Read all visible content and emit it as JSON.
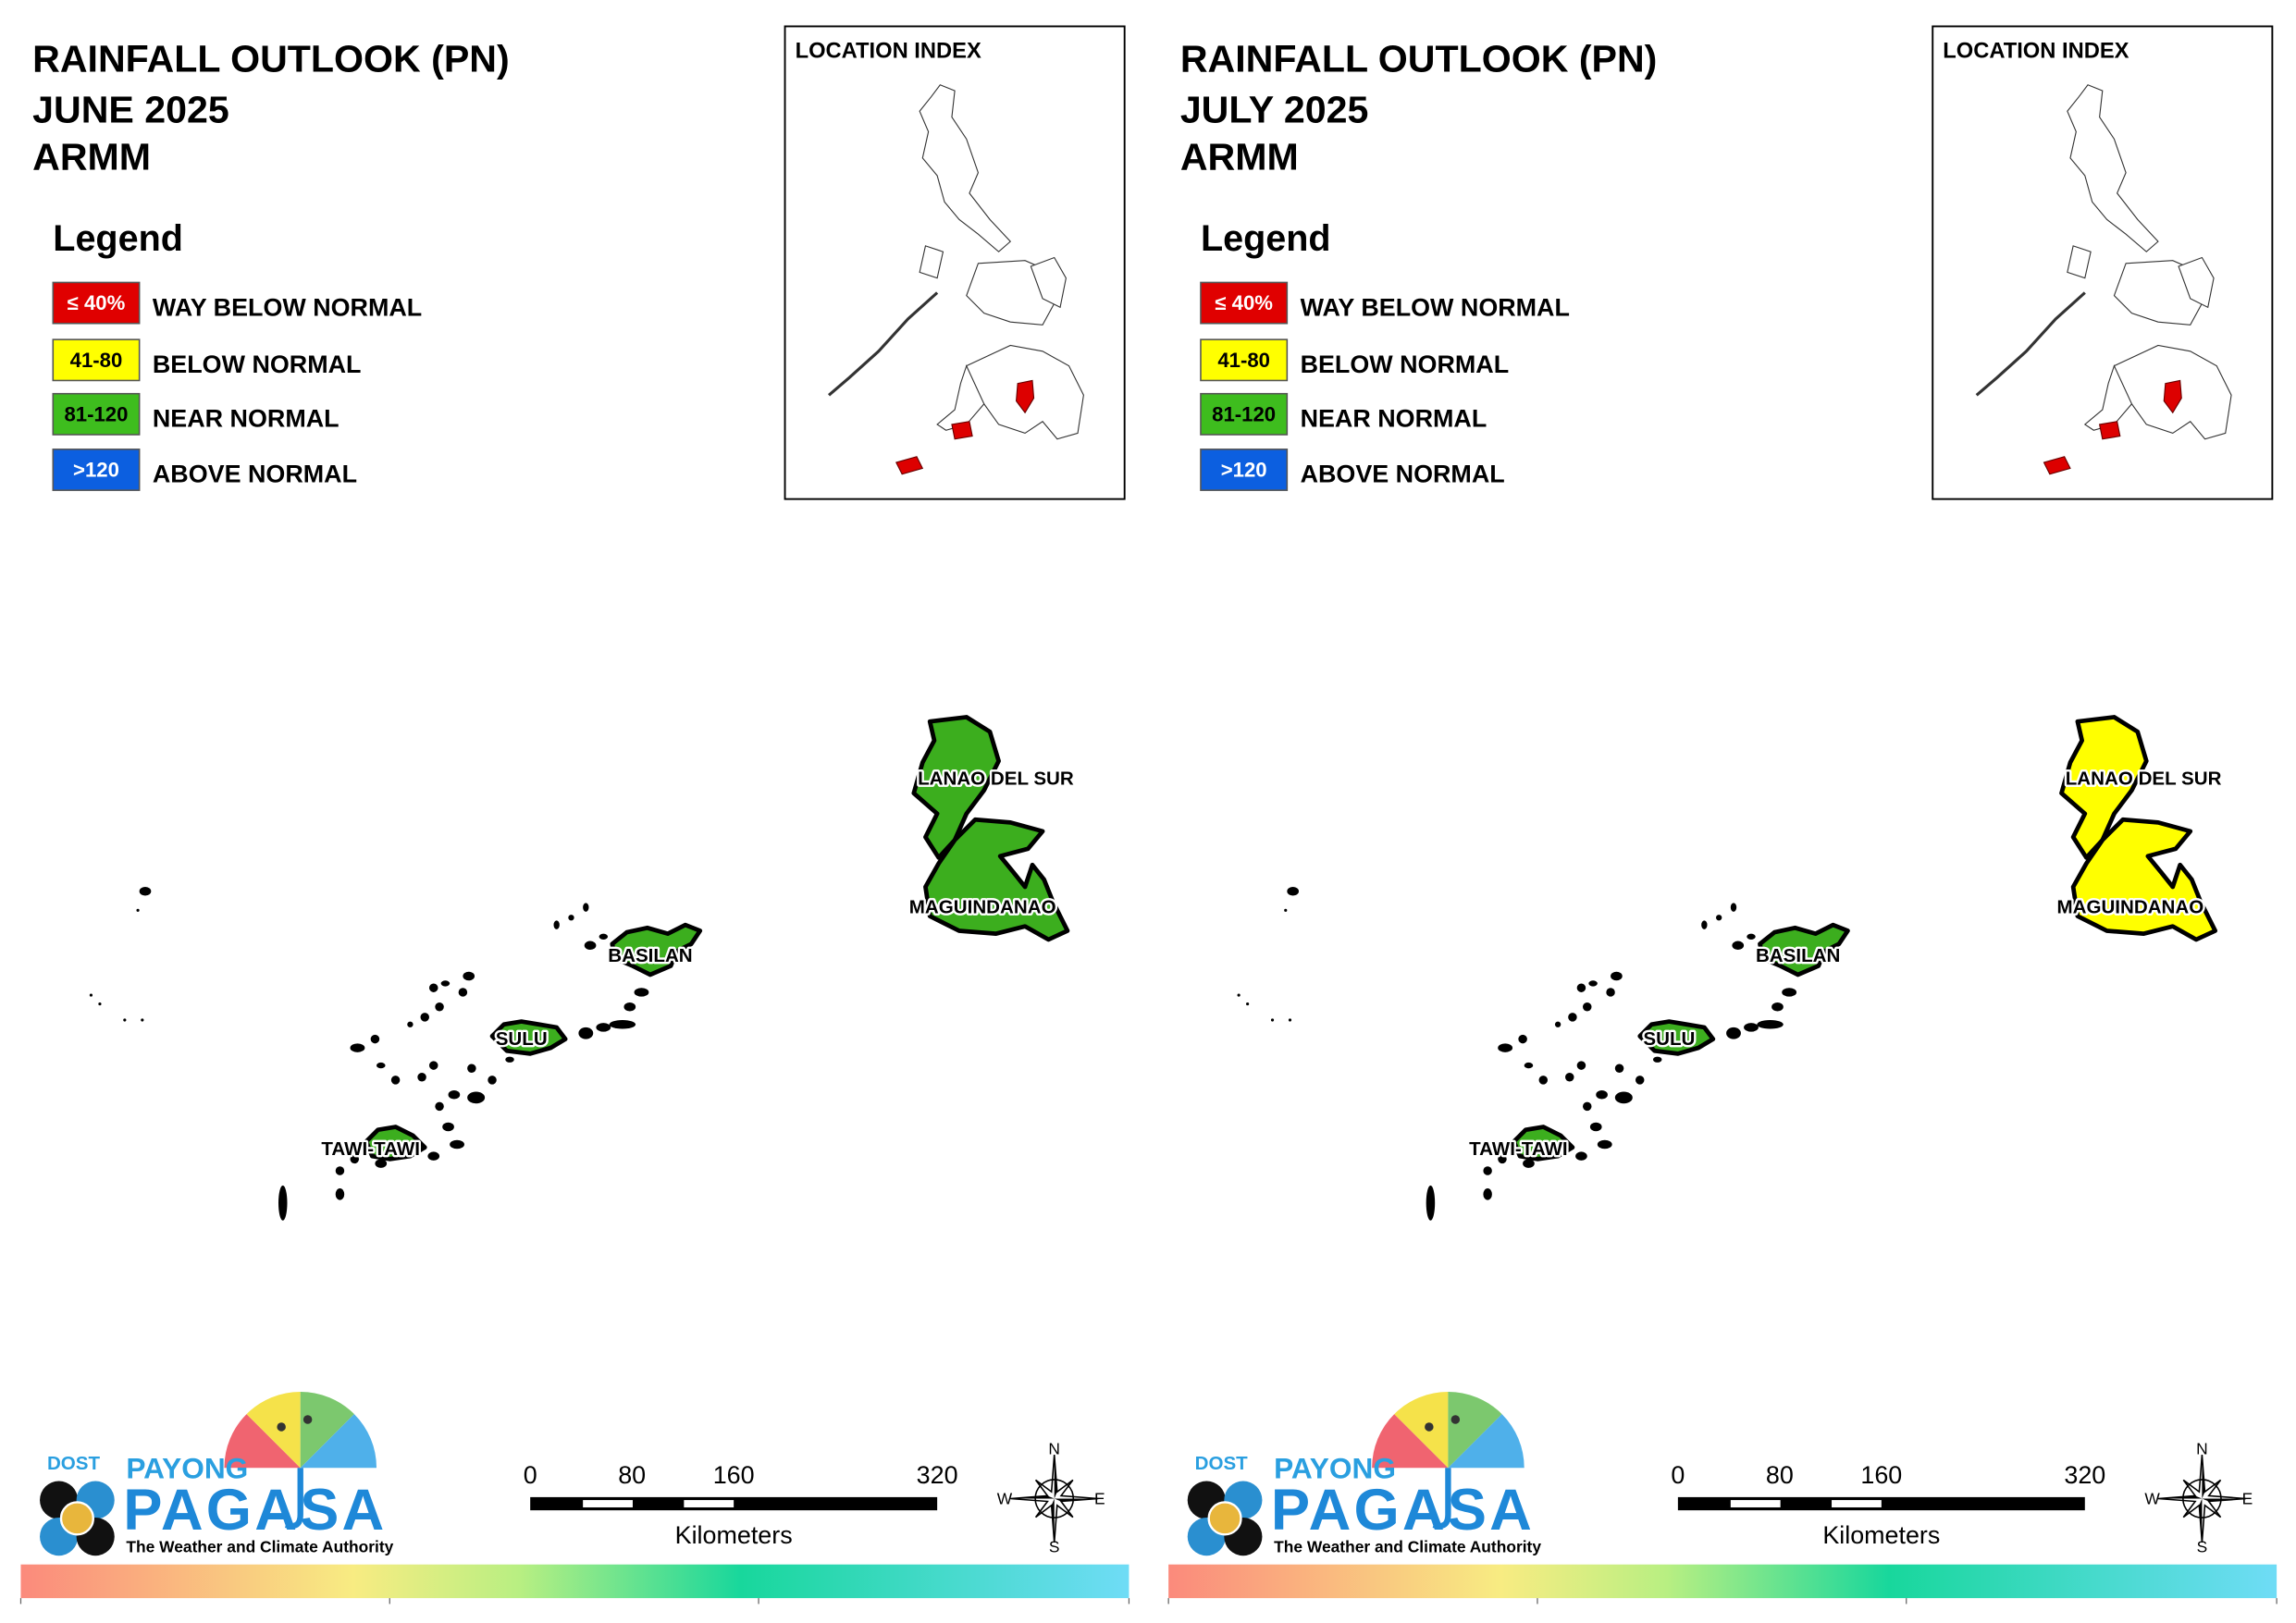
{
  "panels": [
    {
      "title": [
        "RAINFALL OUTLOOK (PN)",
        "JUNE 2025",
        "ARMM"
      ],
      "legend": {
        "title": "Legend",
        "items": [
          {
            "swatch": "≤ 40%",
            "label": "WAY BELOW NORMAL",
            "color": "#e00000"
          },
          {
            "swatch": "41-80",
            "label": "BELOW NORMAL",
            "color": "#ffff00"
          },
          {
            "swatch": "81-120",
            "label": "NEAR NORMAL",
            "color": "#3ebd1e"
          },
          {
            "swatch": ">120",
            "label": "ABOVE NORMAL",
            "color": "#0c5fe0"
          }
        ]
      },
      "location_index": {
        "title": "LOCATION INDEX"
      },
      "regions": [
        {
          "name": "LANAO DEL SUR",
          "color": "#3cae1e"
        },
        {
          "name": "MAGUINDANAO",
          "color": "#3cae1e"
        },
        {
          "name": "BASILAN",
          "color": "#3cae1e"
        },
        {
          "name": "SULU",
          "color": "#3cae1e"
        },
        {
          "name": "TAWI-TAWI",
          "color": "#3cae1e"
        }
      ],
      "logo": {
        "agency": "DOST",
        "brand_top": "PAYONG",
        "brand": "PAGASA",
        "tagline": "The Weather and Climate Authority"
      },
      "scale_bar": {
        "ticks": [
          "0",
          "80",
          "160",
          "320"
        ],
        "unit": "Kilometers"
      },
      "compass": {
        "n": "N",
        "e": "E",
        "s": "S",
        "w": "W"
      }
    },
    {
      "title": [
        "RAINFALL OUTLOOK (PN)",
        "JULY 2025",
        "ARMM"
      ],
      "legend": {
        "title": "Legend",
        "items": [
          {
            "swatch": "≤ 40%",
            "label": "WAY BELOW NORMAL",
            "color": "#e00000"
          },
          {
            "swatch": "41-80",
            "label": "BELOW NORMAL",
            "color": "#ffff00"
          },
          {
            "swatch": "81-120",
            "label": "NEAR NORMAL",
            "color": "#3ebd1e"
          },
          {
            "swatch": ">120",
            "label": "ABOVE NORMAL",
            "color": "#0c5fe0"
          }
        ]
      },
      "location_index": {
        "title": "LOCATION INDEX"
      },
      "regions": [
        {
          "name": "LANAO DEL SUR",
          "color": "#ffff00"
        },
        {
          "name": "MAGUINDANAO",
          "color": "#ffff00"
        },
        {
          "name": "BASILAN",
          "color": "#3cae1e"
        },
        {
          "name": "SULU",
          "color": "#3cae1e"
        },
        {
          "name": "TAWI-TAWI",
          "color": "#3cae1e"
        }
      ],
      "logo": {
        "agency": "DOST",
        "brand_top": "PAYONG",
        "brand": "PAGASA",
        "tagline": "The Weather and Climate Authority"
      },
      "scale_bar": {
        "ticks": [
          "0",
          "80",
          "160",
          "320"
        ],
        "unit": "Kilometers"
      },
      "compass": {
        "n": "N",
        "e": "E",
        "s": "S",
        "w": "W"
      }
    }
  ]
}
